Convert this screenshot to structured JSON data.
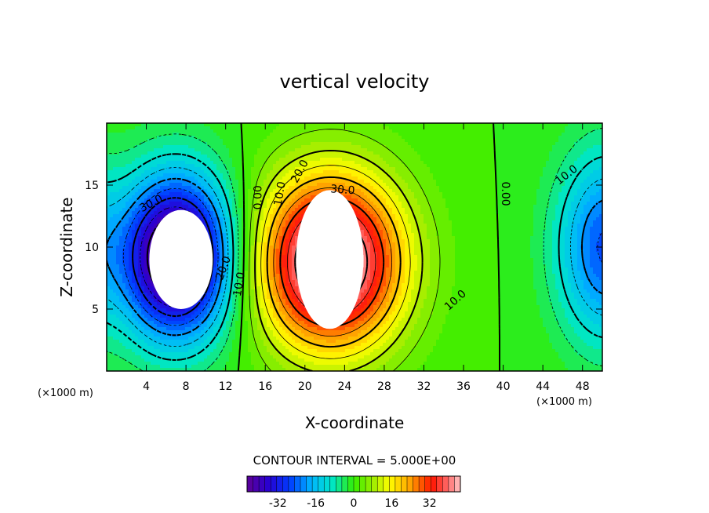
{
  "chart_data": {
    "type": "contour",
    "title": "vertical velocity",
    "xlabel": "X-coordinate",
    "ylabel": "Z-coordinate",
    "x_unit": "(×1000 m)",
    "y_unit": "(×1000 m)",
    "xlim": [
      0,
      50
    ],
    "ylim": [
      0,
      20
    ],
    "x_ticks": [
      "4",
      "8",
      "12",
      "16",
      "20",
      "24",
      "28",
      "32",
      "36",
      "40",
      "44",
      "48"
    ],
    "y_ticks": [
      "5",
      "10",
      "15"
    ],
    "x_tick_values": [
      4,
      8,
      12,
      16,
      20,
      24,
      28,
      32,
      36,
      40,
      44,
      48
    ],
    "y_tick_values": [
      5,
      10,
      15
    ],
    "contour_interval_text": "CONTOUR INTERVAL = 5.000E+00",
    "contour_interval": 5,
    "extrema": [
      {
        "kind": "min",
        "x": 7.5,
        "z": 9,
        "value": -45
      },
      {
        "kind": "max",
        "x": 22.5,
        "z": 9,
        "value": 45
      },
      {
        "kind": "min",
        "x": 49,
        "z": 10,
        "value": -20
      }
    ],
    "contour_labels": [
      {
        "text": "30.0",
        "x": 4.5,
        "z": 13.5,
        "angle": -28
      },
      {
        "text": "20.0",
        "x": 11.8,
        "z": 8.3,
        "angle": -70
      },
      {
        "text": "10.0",
        "x": 13.4,
        "z": 7.0,
        "angle": -80
      },
      {
        "text": "0.00",
        "x": 15.3,
        "z": 14.0,
        "angle": -90
      },
      {
        "text": "10.0",
        "x": 17.5,
        "z": 14.3,
        "angle": -80
      },
      {
        "text": "20.0",
        "x": 19.5,
        "z": 16.1,
        "angle": -62
      },
      {
        "text": "30.0",
        "x": 23.8,
        "z": 14.6,
        "angle": 4
      },
      {
        "text": "10.0",
        "x": 35.2,
        "z": 5.7,
        "angle": -42
      },
      {
        "text": "0.00",
        "x": 40.2,
        "z": 14.3,
        "angle": 90
      },
      {
        "text": "10.0",
        "x": 46.4,
        "z": 15.8,
        "angle": -38
      }
    ],
    "colorbar": {
      "vmin": -45,
      "vmax": 45,
      "ticks": [
        "-32",
        "-16",
        "0",
        "16",
        "32"
      ],
      "tick_values": [
        -32,
        -16,
        0,
        16,
        32
      ]
    }
  },
  "colors": {
    "plot_background": "#33ee00",
    "unresolved_core": "#ffffff",
    "contour_line": "#000000"
  }
}
